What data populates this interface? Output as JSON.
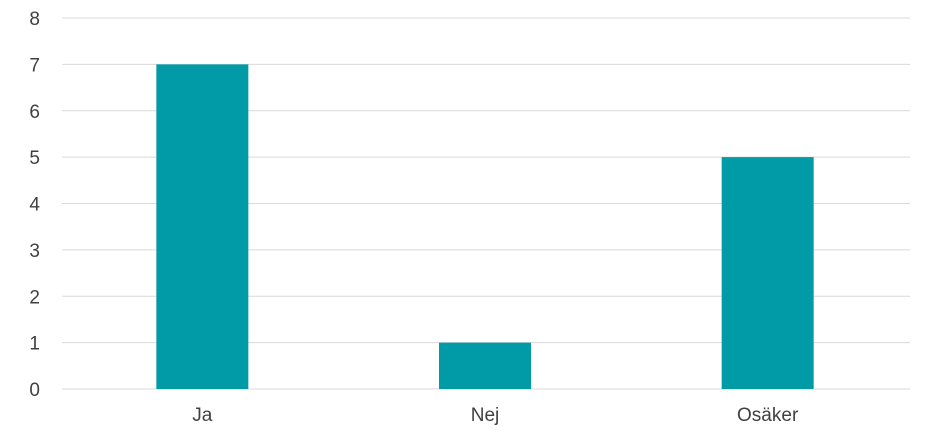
{
  "chart_data": {
    "type": "bar",
    "categories": [
      "Ja",
      "Nej",
      "Osäker"
    ],
    "values": [
      7,
      1,
      5
    ],
    "title": "",
    "xlabel": "",
    "ylabel": "",
    "ylim": [
      0,
      8
    ],
    "yticks": [
      "0",
      "1",
      "2",
      "3",
      "4",
      "5",
      "6",
      "7",
      "8"
    ],
    "grid": true,
    "legend": "none",
    "bar_color": "#009ba6",
    "grid_color": "#d9d9d9",
    "text_color": "#404040"
  }
}
